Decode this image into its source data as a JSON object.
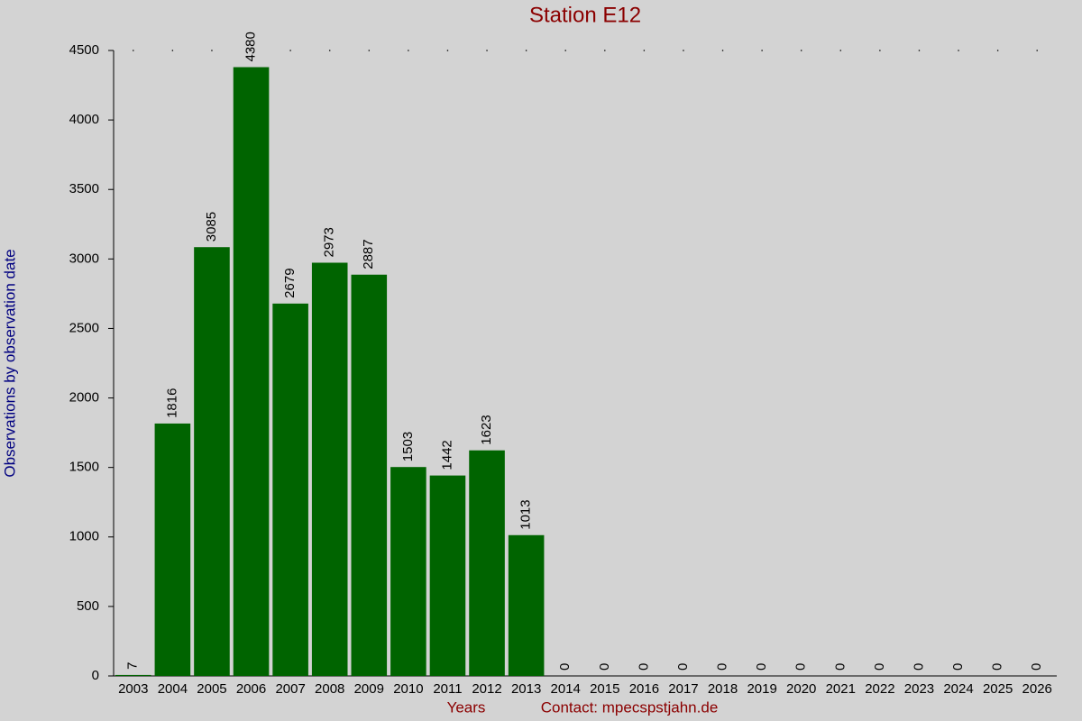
{
  "chart_data": {
    "type": "bar",
    "title": "Station E12",
    "x_label": "Years",
    "y_label": "Observations by observation date",
    "note": "Contact: mpecspstjahn.de",
    "categories": [
      "2003",
      "2004",
      "2005",
      "2006",
      "2007",
      "2008",
      "2009",
      "2010",
      "2011",
      "2012",
      "2013",
      "2014",
      "2015",
      "2016",
      "2017",
      "2018",
      "2019",
      "2020",
      "2021",
      "2022",
      "2023",
      "2024",
      "2025",
      "2026"
    ],
    "values": [
      7,
      1816,
      3085,
      4380,
      2679,
      2973,
      2887,
      1503,
      1442,
      1623,
      1013,
      0,
      0,
      0,
      0,
      0,
      0,
      0,
      0,
      0,
      0,
      0,
      0,
      0
    ],
    "color": "#006400",
    "ylim": [
      0,
      4500
    ],
    "yticks": [
      0,
      500,
      1000,
      1500,
      2000,
      2500,
      3000,
      3500,
      4000,
      4500
    ],
    "grid": false
  }
}
